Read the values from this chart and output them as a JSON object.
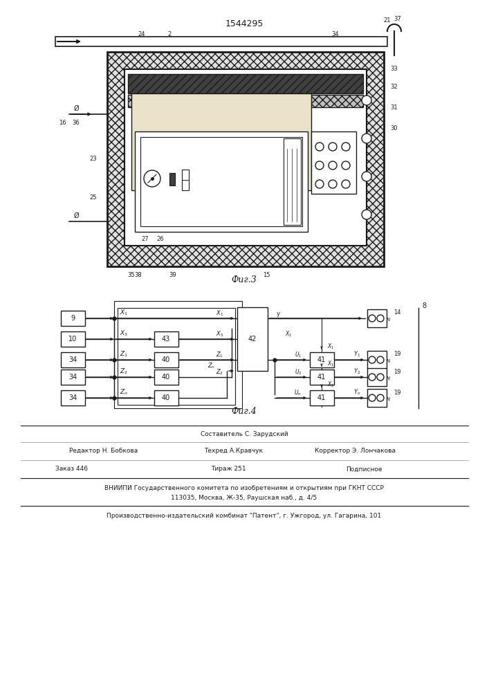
{
  "patent_number": "1544295",
  "fig3_caption": "Фиг.3",
  "fig4_caption": "Фиг.4",
  "bg": "#ffffff",
  "lc": "#1a1a1a",
  "footer_lines": [
    "Составитель С. Зарудский",
    "Редактор Н. Бобкова",
    "Техред А.Кравчук",
    "Корректор Э. Лончакова",
    "Заказ 446",
    "Тираж 251",
    "Подписное",
    "ВНИИПИ Государственного комитета по изобретениям и открытиям при ГКНТ СССР",
    "113035, Москва, Ж-35, Раушская наб., д. 4/5",
    "Производственно-издательский комбинат \"Патент\", г. Ужгород, ул. Гагарина, 101"
  ]
}
